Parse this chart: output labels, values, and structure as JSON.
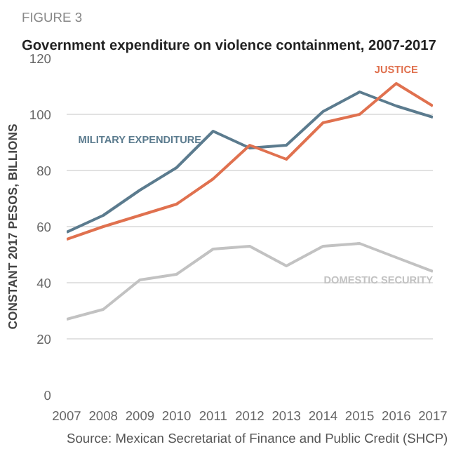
{
  "chart_data": {
    "type": "line",
    "subtitle": "FIGURE 3",
    "title": "Government expenditure on violence containment, 2007-2017",
    "ylabel": "CONSTANT 2017 PESOS, BILLIONS",
    "x": [
      2007,
      2008,
      2009,
      2010,
      2011,
      2012,
      2013,
      2014,
      2015,
      2016,
      2017
    ],
    "xlim": [
      2007,
      2017
    ],
    "xticks": [
      2007,
      2008,
      2009,
      2010,
      2011,
      2012,
      2013,
      2014,
      2015,
      2016,
      2017
    ],
    "ylim": [
      0,
      120
    ],
    "yticks": [
      0,
      20,
      40,
      60,
      80,
      100,
      120
    ],
    "grid": "y",
    "legend": false,
    "marker": "none",
    "line_style": "solid",
    "series": [
      {
        "name": "MILITARY EXPENDITURE",
        "color": "#5b7b8e",
        "values": [
          58,
          64,
          73,
          81,
          94,
          88,
          89,
          101,
          108,
          103,
          99
        ]
      },
      {
        "name": "JUSTICE",
        "color": "#e0714f",
        "values": [
          55.5,
          60,
          64,
          68,
          77,
          89,
          84,
          97,
          100,
          111,
          103
        ]
      },
      {
        "name": "DOMESTIC SECURITY",
        "color": "#c2c2c2",
        "values": [
          27,
          30.5,
          41,
          43,
          52,
          53,
          46,
          53,
          54,
          49,
          44
        ]
      }
    ],
    "annotations": [
      "Source: Mexican Secretariat of Finance and Public Credit (SHCP)"
    ]
  }
}
